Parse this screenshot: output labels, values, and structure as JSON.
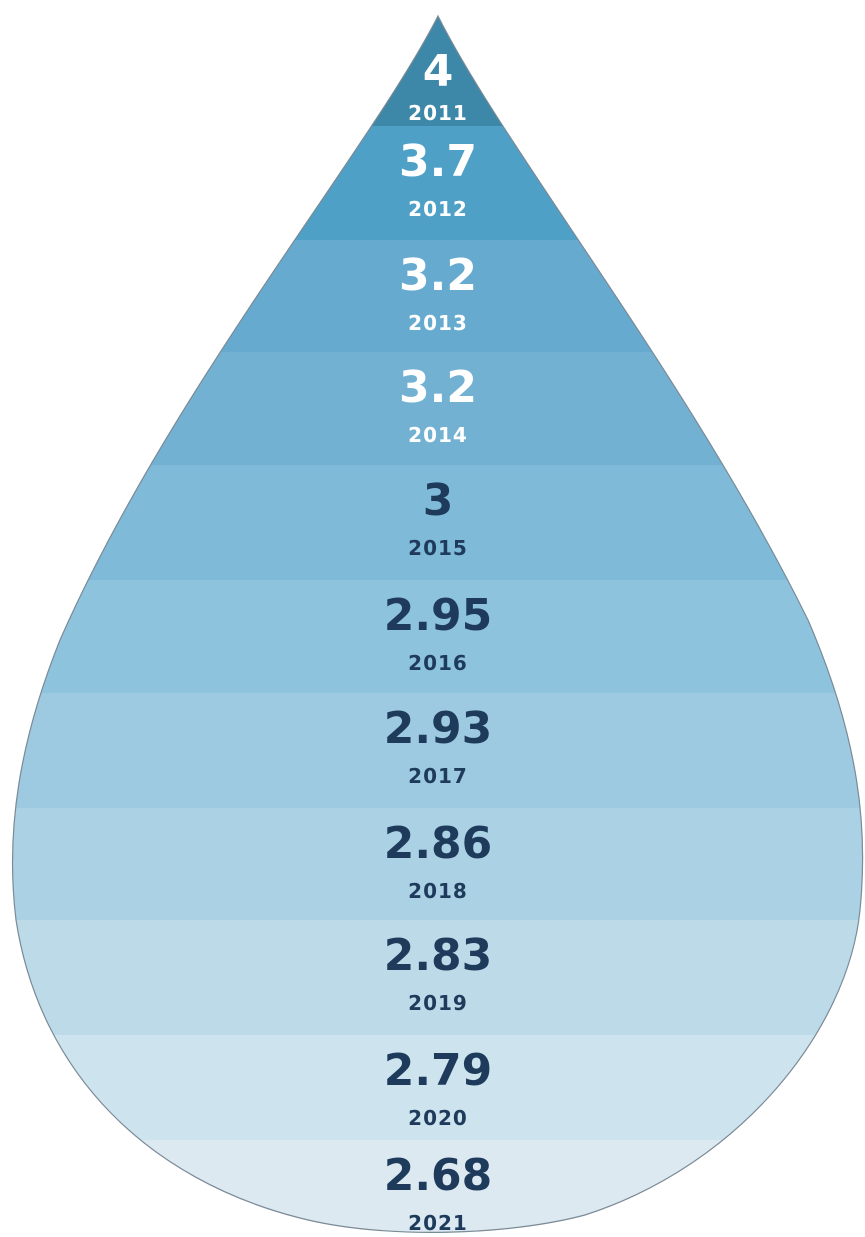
{
  "chart_data": {
    "type": "bar",
    "title": "",
    "xlabel": "",
    "ylabel": "",
    "categories": [
      "2011",
      "2012",
      "2013",
      "2014",
      "2015",
      "2016",
      "2017",
      "2018",
      "2019",
      "2020",
      "2021"
    ],
    "values": [
      "4",
      "3.7",
      "3.2",
      "3.2",
      "3",
      "2.95",
      "2.93",
      "2.86",
      "2.83",
      "2.79",
      "2.68"
    ],
    "band_colors": [
      "#3d87a8",
      "#4fa0c6",
      "#66abcf",
      "#73b1d3",
      "#7fbad8",
      "#8ec3dd",
      "#9dcae1",
      "#abd1e4",
      "#bddae9",
      "#cde3ee",
      "#dde9f1"
    ],
    "label_colors": {
      "light": "#ffffff",
      "dark": "#1e3b5c"
    },
    "light_label_count": 4
  }
}
